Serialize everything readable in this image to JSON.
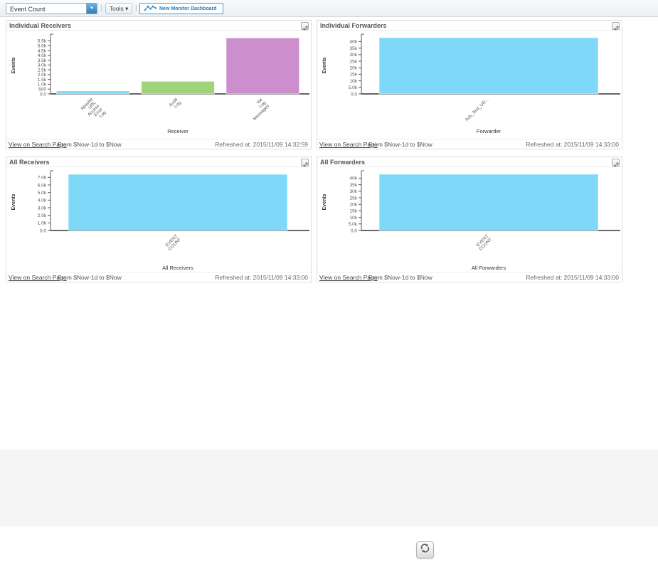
{
  "toolbar": {
    "event_count_select": "Event Count",
    "select_arrow": "▼",
    "separator": "|",
    "tools_label": "Tools ▾",
    "new_dashboard_label": "New Monitor Dashboard"
  },
  "colors": {
    "accent_blue": "#2a8fd0",
    "bar_blue": "#7fd8f7",
    "bar_green": "#9ed37a",
    "bar_purple": "#cc8ecc"
  },
  "chart_data": [
    {
      "type": "bar",
      "title": "Individual Receivers",
      "ylabel": "Events",
      "xlabel": "Receiver",
      "ylim": [
        0,
        5900
      ],
      "yticks": [
        {
          "v": 0,
          "label": "0.0"
        },
        {
          "v": 500,
          "label": "500"
        },
        {
          "v": 1000,
          "label": "1.0k"
        },
        {
          "v": 1500,
          "label": "1.5k"
        },
        {
          "v": 2000,
          "label": "2.0k"
        },
        {
          "v": 2500,
          "label": "2.5k"
        },
        {
          "v": 3000,
          "label": "3.0k"
        },
        {
          "v": 3500,
          "label": "3.5k"
        },
        {
          "v": 4000,
          "label": "4.0k"
        },
        {
          "v": 4500,
          "label": "4.5k"
        },
        {
          "v": 5000,
          "label": "5.0k"
        },
        {
          "v": 5500,
          "label": "5.5k"
        }
      ],
      "categories": [
        {
          "label": "Apache URL Access Error Log",
          "lines": [
            "Apache",
            "URL",
            "Access",
            "Error",
            "Log"
          ]
        },
        {
          "label": "Audit Log",
          "lines": [
            "Audit",
            "Log"
          ]
        },
        {
          "label": "Var Log Messages",
          "lines": [
            "Var",
            "Log",
            "Messages"
          ]
        }
      ],
      "values": [
        300,
        1300,
        5800
      ],
      "bar_colors": [
        "#7fd8f7",
        "#9ed37a",
        "#cc8ecc"
      ],
      "legend": false,
      "grid": false,
      "footer": {
        "link": "View on Search Page",
        "range": "From $Now-1d to $Now",
        "refreshed_label": "Refreshed at:",
        "refreshed": "2015/11/09 14:32:59"
      }
    },
    {
      "type": "bar",
      "title": "Individual Forwarders",
      "ylabel": "Events",
      "xlabel": "Forwarder",
      "ylim": [
        0,
        43500
      ],
      "yticks": [
        {
          "v": 0,
          "label": "0.0"
        },
        {
          "v": 5000,
          "label": "5.0k"
        },
        {
          "v": 10000,
          "label": "10k"
        },
        {
          "v": 15000,
          "label": "15k"
        },
        {
          "v": 20000,
          "label": "20k"
        },
        {
          "v": 25000,
          "label": "25k"
        },
        {
          "v": 30000,
          "label": "30k"
        },
        {
          "v": 35000,
          "label": "35k"
        },
        {
          "v": 40000,
          "label": "40k"
        }
      ],
      "categories": [
        {
          "label": "Avb_Test_UD...",
          "lines": [
            "Avb_Test_UD..."
          ]
        }
      ],
      "values": [
        43000
      ],
      "bar_colors": [
        "#7fd8f7"
      ],
      "legend": false,
      "grid": false,
      "footer": {
        "link": "View on Search Page",
        "range": "From $Now-1d to $Now",
        "refreshed_label": "Refreshed at:",
        "refreshed": "2015/11/09 14:33:00"
      }
    },
    {
      "type": "bar",
      "title": "All Receivers",
      "ylabel": "Events",
      "xlabel": "All Receivers",
      "ylim": [
        0,
        7500
      ],
      "yticks": [
        {
          "v": 0,
          "label": "0.0"
        },
        {
          "v": 1000,
          "label": "1.0k"
        },
        {
          "v": 2000,
          "label": "2.0k"
        },
        {
          "v": 3000,
          "label": "3.0k"
        },
        {
          "v": 4000,
          "label": "4.0k"
        },
        {
          "v": 5000,
          "label": "5.0k"
        },
        {
          "v": 6000,
          "label": "6.0k"
        },
        {
          "v": 7000,
          "label": "7.0k"
        }
      ],
      "categories": [
        {
          "label": "EVENT COUNT",
          "lines": [
            "EVENT",
            "COUNT"
          ]
        }
      ],
      "values": [
        7400
      ],
      "bar_colors": [
        "#7fd8f7"
      ],
      "legend": false,
      "grid": false,
      "footer": {
        "link": "View on Search Page",
        "range": "From $Now-1d to $Now",
        "refreshed_label": "Refreshed at:",
        "refreshed": "2015/11/09 14:33:00"
      }
    },
    {
      "type": "bar",
      "title": "All Forwarders",
      "ylabel": "Events",
      "xlabel": "All Forwarders",
      "ylim": [
        0,
        43500
      ],
      "yticks": [
        {
          "v": 0,
          "label": "0.0"
        },
        {
          "v": 5000,
          "label": "5.0k"
        },
        {
          "v": 10000,
          "label": "10k"
        },
        {
          "v": 15000,
          "label": "15k"
        },
        {
          "v": 20000,
          "label": "20k"
        },
        {
          "v": 25000,
          "label": "25k"
        },
        {
          "v": 30000,
          "label": "30k"
        },
        {
          "v": 35000,
          "label": "35k"
        },
        {
          "v": 40000,
          "label": "40k"
        }
      ],
      "categories": [
        {
          "label": "EVENT COUNT",
          "lines": [
            "EVENT",
            "COUNT"
          ]
        }
      ],
      "values": [
        43000
      ],
      "bar_colors": [
        "#7fd8f7"
      ],
      "legend": false,
      "grid": false,
      "footer": {
        "link": "View on Search Page",
        "range": "From $Now-1d to $Now",
        "refreshed_label": "Refreshed at:",
        "refreshed": "2015/11/09 14:33:00"
      }
    }
  ]
}
